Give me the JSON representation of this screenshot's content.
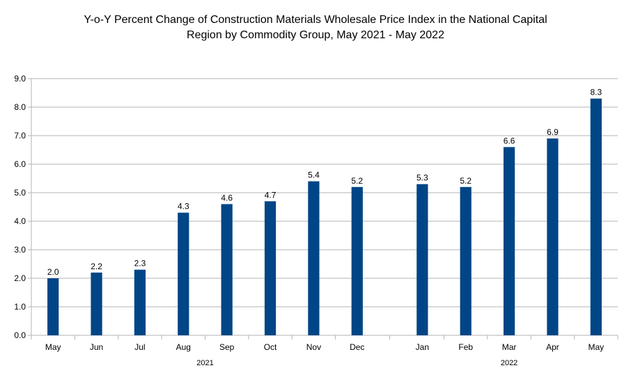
{
  "chart_data": {
    "type": "bar",
    "title_line1": "Y-o-Y Percent Change of Construction Materials Wholesale Price Index in the National Capital",
    "title_line2": "Region by Commodity Group, May 2021 - May 2022",
    "xlabel": "",
    "ylabel": "",
    "ylim": [
      0,
      9
    ],
    "yticks": [
      "0.0",
      "1.0",
      "2.0",
      "3.0",
      "4.0",
      "5.0",
      "6.0",
      "7.0",
      "8.0",
      "9.0"
    ],
    "grid": true,
    "bar_color": "#004586",
    "categories": [
      "May",
      "Jun",
      "Jul",
      "Aug",
      "Sep",
      "Oct",
      "Nov",
      "Dec",
      "Jan",
      "Feb",
      "Mar",
      "Apr",
      "May"
    ],
    "values": [
      2.0,
      2.2,
      2.3,
      4.3,
      4.6,
      4.7,
      5.4,
      5.2,
      5.3,
      5.2,
      6.6,
      6.9,
      8.3
    ],
    "value_labels": [
      "2.0",
      "2.2",
      "2.3",
      "4.3",
      "4.6",
      "4.7",
      "5.4",
      "5.2",
      "5.3",
      "5.2",
      "6.6",
      "6.9",
      "8.3"
    ],
    "year_groups": [
      {
        "label": "2021",
        "from": 0,
        "to": 7
      },
      {
        "label": "2022",
        "from": 8,
        "to": 12
      }
    ]
  }
}
